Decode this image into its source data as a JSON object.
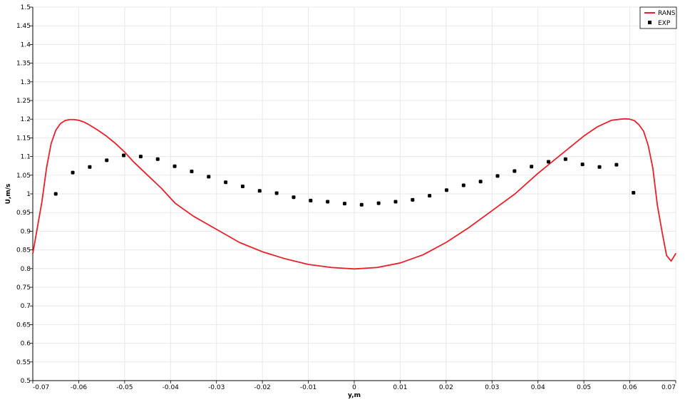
{
  "chart_data": {
    "type": "line",
    "xlabel": "y,m",
    "ylabel": "U,m/s",
    "xlim": [
      -0.07,
      0.07
    ],
    "ylim": [
      0.5,
      1.5
    ],
    "xticks": [
      "-0.07",
      "-0.06",
      "-0.05",
      "-0.04",
      "-0.03",
      "-0.02",
      "-0.01",
      "0",
      "0.01",
      "0.02",
      "0.03",
      "0.04",
      "0.05",
      "0.06",
      "0.07"
    ],
    "yticks": [
      "0.5",
      "0.55",
      "0.6",
      "0.65",
      "0.7",
      "0.75",
      "0.8",
      "0.85",
      "0.9",
      "0.95",
      "1",
      "1.05",
      "1.1",
      "1.15",
      "1.2",
      "1.25",
      "1.3",
      "1.35",
      "1.4",
      "1.45",
      "1.5"
    ],
    "grid": true,
    "legend_position": "top-right",
    "series": [
      {
        "name": "RANS",
        "kind": "line",
        "color": "#e8202a",
        "x": [
          -0.07,
          -0.069,
          -0.068,
          -0.067,
          -0.066,
          -0.065,
          -0.064,
          -0.063,
          -0.062,
          -0.061,
          -0.06,
          -0.059,
          -0.058,
          -0.056,
          -0.054,
          -0.052,
          -0.05,
          -0.048,
          -0.045,
          -0.042,
          -0.039,
          -0.035,
          -0.03,
          -0.025,
          -0.02,
          -0.015,
          -0.01,
          -0.005,
          0,
          0.005,
          0.01,
          0.015,
          0.02,
          0.025,
          0.03,
          0.035,
          0.04,
          0.045,
          0.05,
          0.053,
          0.056,
          0.058,
          0.059,
          0.06,
          0.061,
          0.062,
          0.063,
          0.064,
          0.065,
          0.066,
          0.067,
          0.068,
          0.069,
          0.07
        ],
        "y": [
          0.84,
          0.91,
          0.98,
          1.07,
          1.135,
          1.17,
          1.188,
          1.196,
          1.199,
          1.199,
          1.197,
          1.193,
          1.187,
          1.172,
          1.155,
          1.135,
          1.112,
          1.085,
          1.05,
          1.015,
          0.975,
          0.94,
          0.905,
          0.87,
          0.845,
          0.826,
          0.811,
          0.803,
          0.799,
          0.803,
          0.815,
          0.837,
          0.87,
          0.91,
          0.955,
          1.0,
          1.055,
          1.105,
          1.155,
          1.18,
          1.197,
          1.2,
          1.201,
          1.2,
          1.196,
          1.185,
          1.168,
          1.13,
          1.07,
          0.97,
          0.9,
          0.835,
          0.82,
          0.84
        ]
      },
      {
        "name": "EXP",
        "kind": "scatter",
        "color": "#000000",
        "x": [
          -0.065,
          -0.0613,
          -0.0576,
          -0.0539,
          -0.0502,
          -0.0465,
          -0.0428,
          -0.0391,
          -0.0354,
          -0.0317,
          -0.028,
          -0.0243,
          -0.0206,
          -0.0169,
          -0.0132,
          -0.0095,
          -0.0058,
          -0.0021,
          0.0016,
          0.0053,
          0.009,
          0.0127,
          0.0164,
          0.0201,
          0.0238,
          0.0275,
          0.0312,
          0.0349,
          0.0386,
          0.0423,
          0.046,
          0.0497,
          0.0534,
          0.0571,
          0.0608
        ],
        "y": [
          1.0,
          1.057,
          1.072,
          1.09,
          1.103,
          1.1,
          1.093,
          1.074,
          1.06,
          1.046,
          1.031,
          1.02,
          1.008,
          1.002,
          0.991,
          0.982,
          0.979,
          0.974,
          0.971,
          0.975,
          0.979,
          0.984,
          0.995,
          1.01,
          1.023,
          1.033,
          1.048,
          1.061,
          1.073,
          1.086,
          1.093,
          1.079,
          1.072,
          1.078,
          1.003
        ]
      }
    ]
  }
}
